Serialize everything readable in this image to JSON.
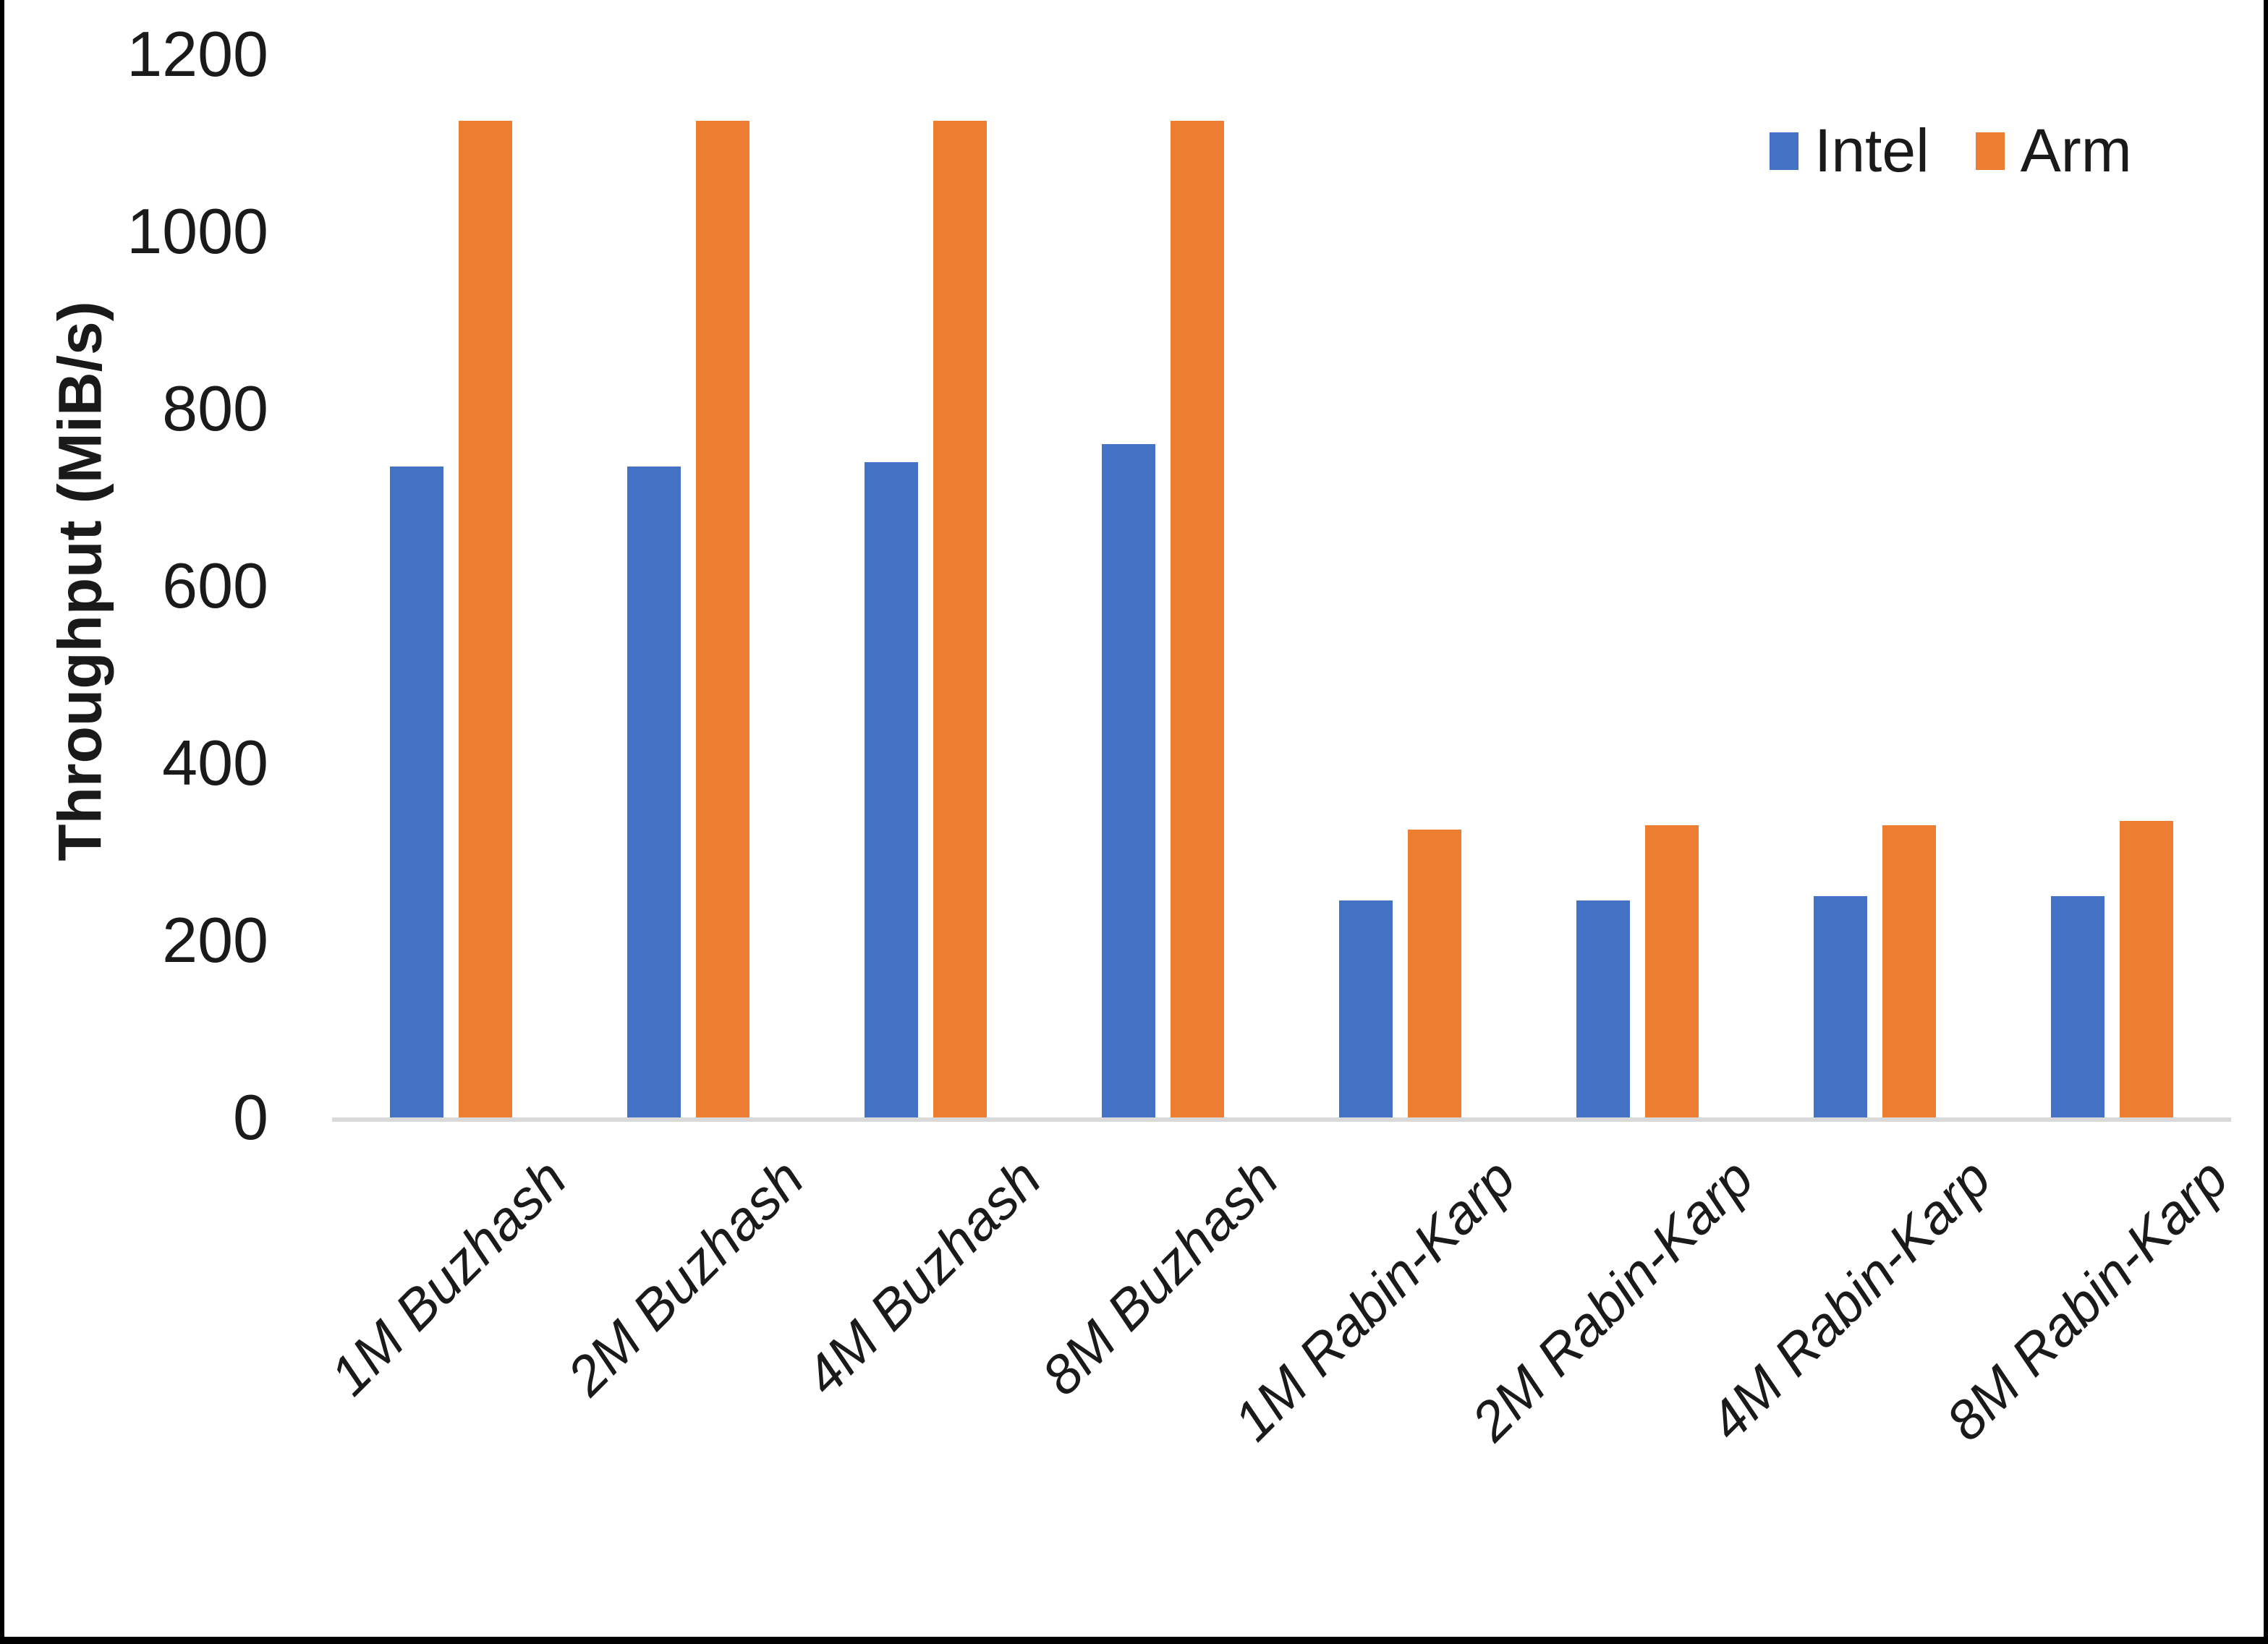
{
  "chart_data": {
    "type": "bar",
    "title": "",
    "xlabel": "",
    "ylabel": "Throughput (MiB/s)",
    "ylim": [
      0,
      1200
    ],
    "yticks": [
      0,
      200,
      400,
      600,
      800,
      1000,
      1200
    ],
    "grid": false,
    "legend_position": "top-right",
    "categories": [
      "1M Buzhash",
      "2M Buzhash",
      "4M Buzhash",
      "8M Buzhash",
      "1M Rabin-Karp",
      "2M Rabin-Karp",
      "4M Rabin-Karp",
      "8M Rabin-Karp"
    ],
    "series": [
      {
        "name": "Intel",
        "color": "#4472C4",
        "values": [
          735,
          735,
          740,
          760,
          245,
          245,
          250,
          250
        ]
      },
      {
        "name": "Arm",
        "color": "#ED7D31",
        "values": [
          1125,
          1125,
          1125,
          1125,
          325,
          330,
          330,
          335
        ]
      }
    ]
  },
  "colors": {
    "axis_line": "#D9D9D9",
    "text": "#1A1A1A",
    "background": "#FFFFFF",
    "frame_border": "#000000"
  }
}
